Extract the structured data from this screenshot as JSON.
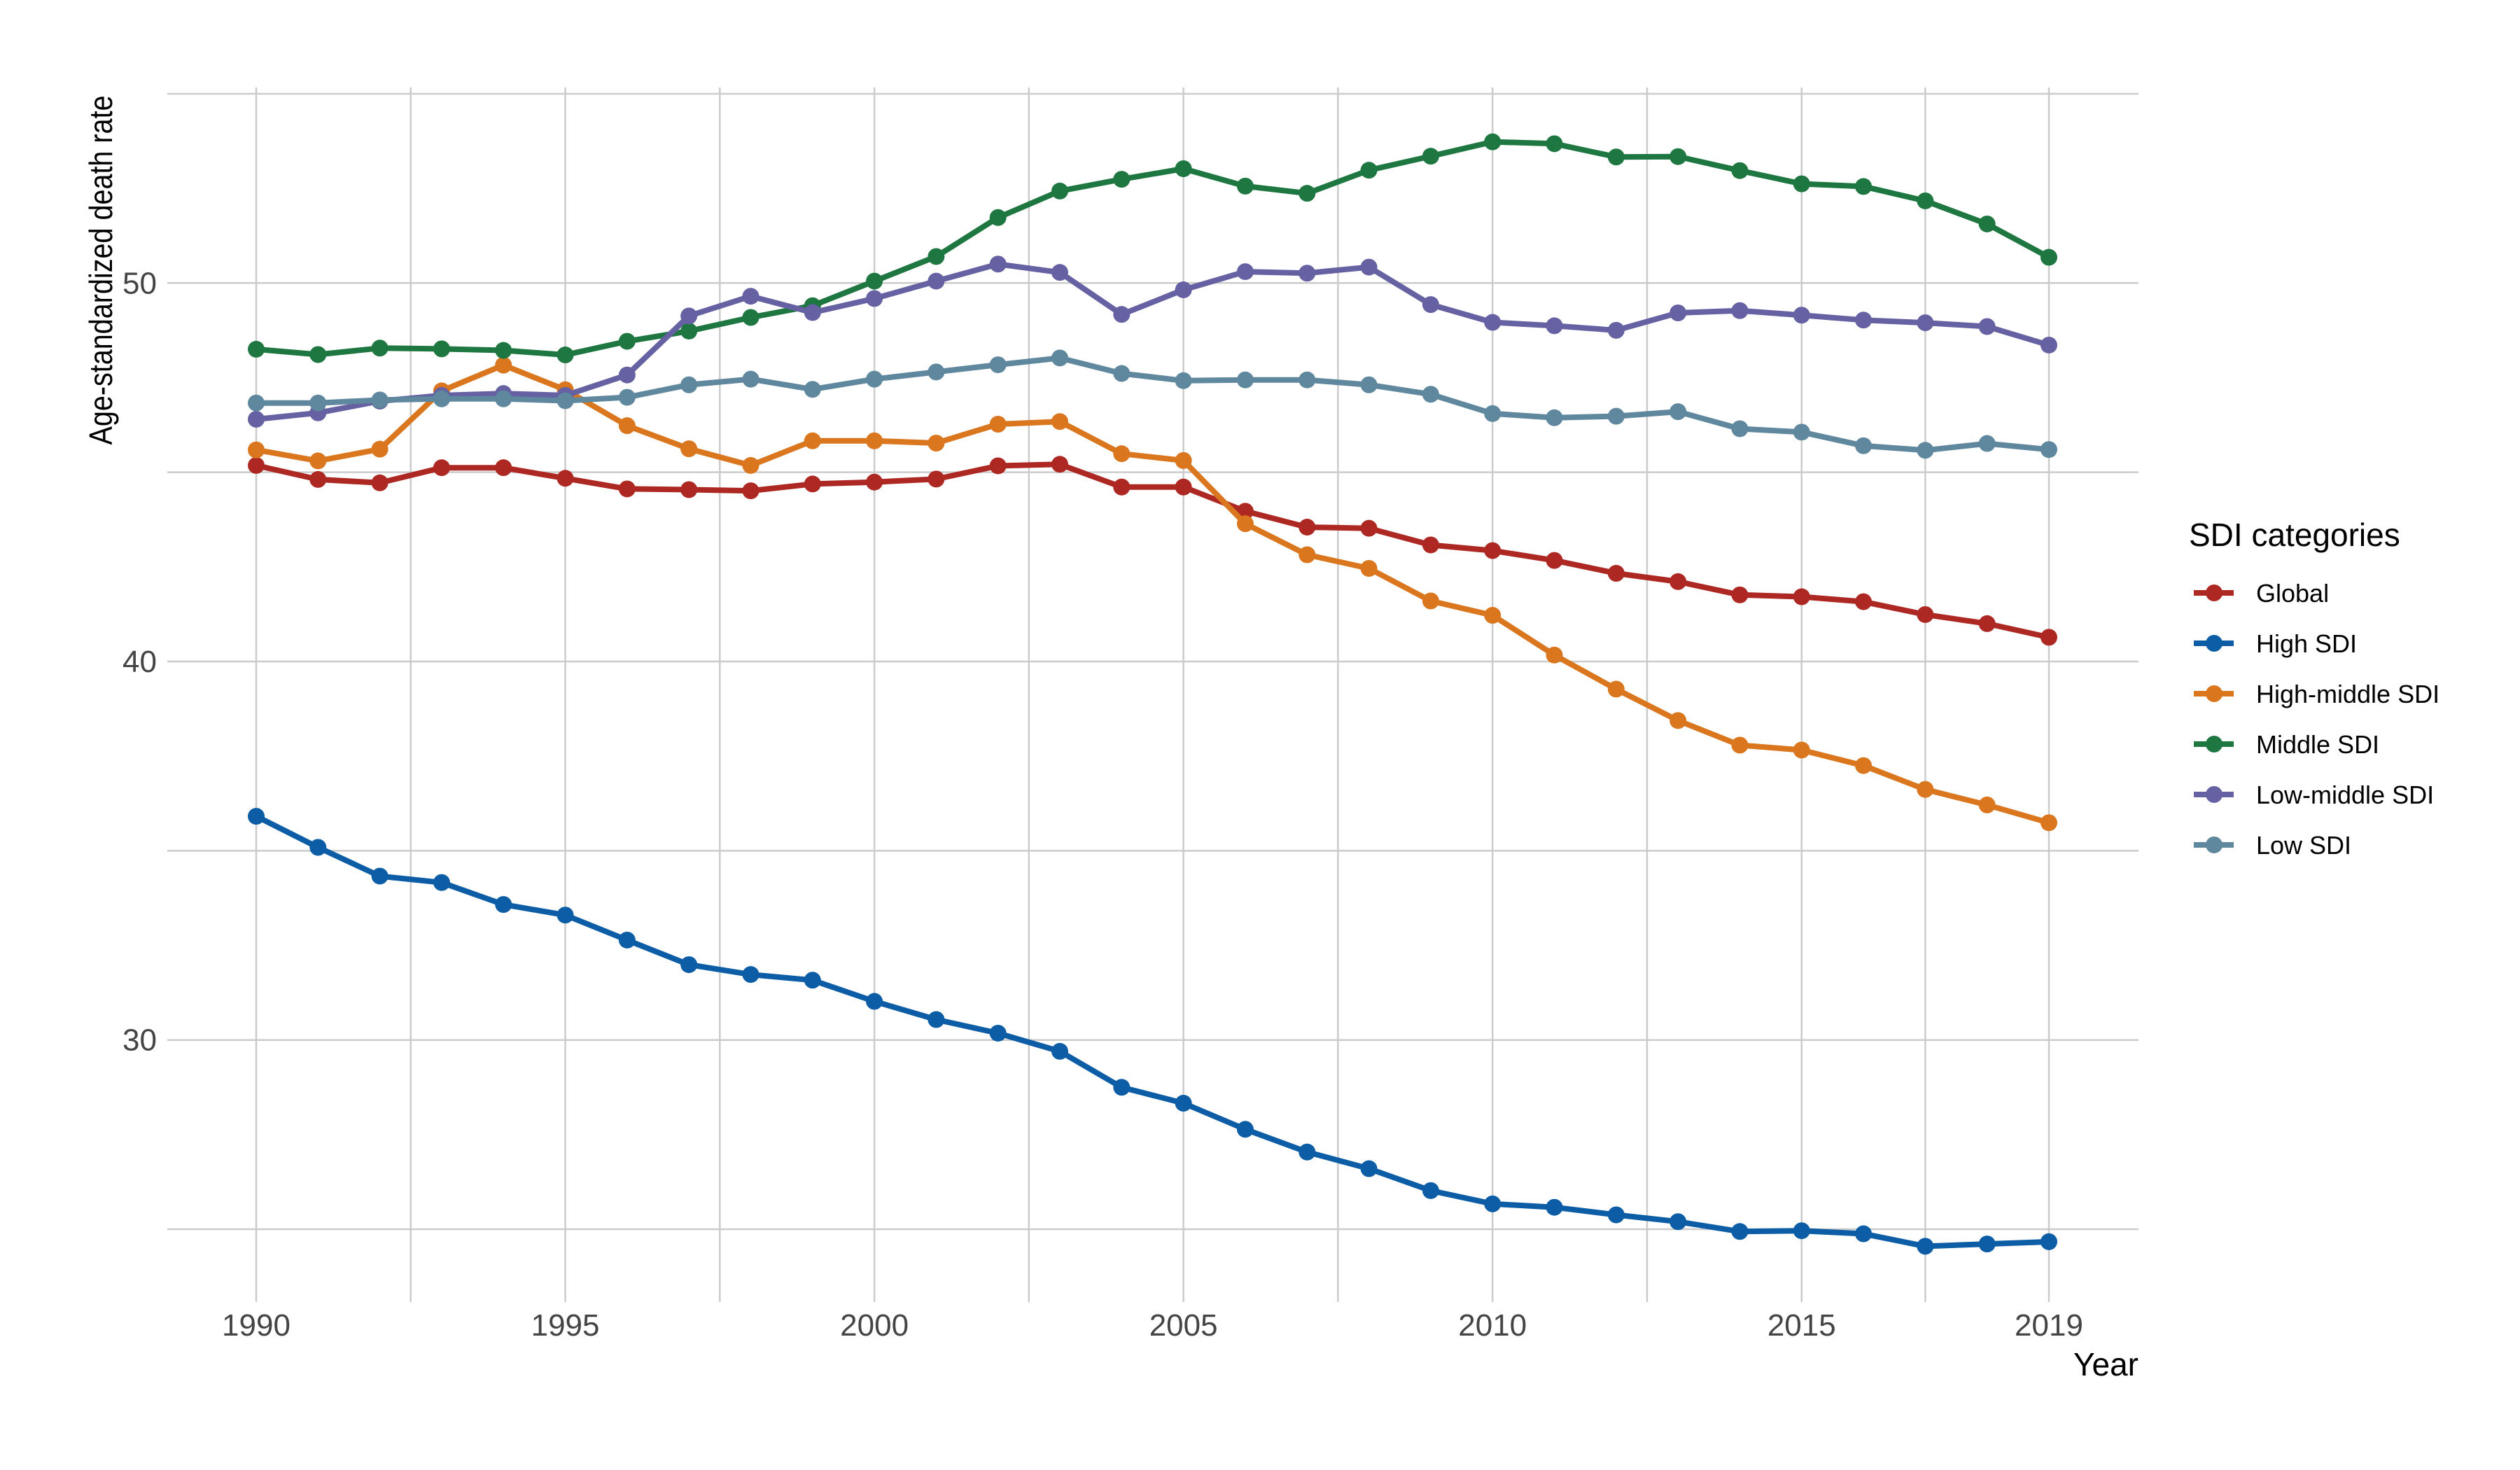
{
  "chart_data": {
    "type": "line",
    "title": "",
    "xlabel": "Year",
    "ylabel": "Age-standardized death rate",
    "x": [
      1990,
      1991,
      1992,
      1993,
      1994,
      1995,
      1996,
      1997,
      1998,
      1999,
      2000,
      2001,
      2002,
      2003,
      2004,
      2005,
      2006,
      2007,
      2008,
      2009,
      2010,
      2011,
      2012,
      2013,
      2014,
      2015,
      2016,
      2017,
      2018,
      2019
    ],
    "x_ticks": [
      1990,
      1995,
      2000,
      2005,
      2010,
      2015,
      2019
    ],
    "x_tick_labels": [
      "1990",
      "1995",
      "2000",
      "2005",
      "2010",
      "2015",
      "2019"
    ],
    "x_minor_ticks": [
      1992.5,
      1997.5,
      2002.5,
      2007.5,
      2012.5,
      2017
    ],
    "y_ticks": [
      30,
      40,
      50
    ],
    "y_tick_labels": [
      "30",
      "40",
      "50"
    ],
    "y_minor_ticks": [
      25,
      35,
      45,
      55
    ],
    "xlim": [
      1988.5,
      2020.5
    ],
    "ylim": [
      23.1,
      56.9
    ],
    "grid": true,
    "legend": {
      "title": "SDI categories",
      "position": "right"
    },
    "series": [
      {
        "name": "Global",
        "color": "#AD2822",
        "values": [
          45.18,
          44.81,
          44.72,
          45.12,
          45.12,
          44.84,
          44.56,
          44.54,
          44.51,
          44.69,
          44.74,
          44.82,
          45.17,
          45.21,
          44.61,
          44.61,
          43.97,
          43.55,
          43.52,
          43.08,
          42.93,
          42.67,
          42.33,
          42.11,
          41.76,
          41.71,
          41.58,
          41.24,
          41.0,
          40.64
        ]
      },
      {
        "name": "High SDI",
        "color": "#0C5DA5",
        "values": [
          35.91,
          35.09,
          34.33,
          34.16,
          33.58,
          33.3,
          32.64,
          31.99,
          31.73,
          31.58,
          31.02,
          30.54,
          30.18,
          29.7,
          28.75,
          28.33,
          27.64,
          27.04,
          26.6,
          26.02,
          25.67,
          25.58,
          25.38,
          25.2,
          24.94,
          24.96,
          24.88,
          24.55,
          24.61,
          24.67
        ]
      },
      {
        "name": "High-middle SDI",
        "color": "#D9761E",
        "values": [
          45.59,
          45.3,
          45.61,
          47.15,
          47.83,
          47.18,
          46.23,
          45.62,
          45.18,
          45.83,
          45.83,
          45.77,
          46.27,
          46.34,
          45.49,
          45.31,
          43.64,
          42.82,
          42.46,
          41.6,
          41.22,
          40.17,
          39.27,
          38.44,
          37.79,
          37.66,
          37.25,
          36.62,
          36.21,
          35.74
        ]
      },
      {
        "name": "Middle SDI",
        "color": "#1E7740",
        "values": [
          48.25,
          48.11,
          48.28,
          48.26,
          48.22,
          48.1,
          48.46,
          48.73,
          49.09,
          49.4,
          50.05,
          50.7,
          51.73,
          52.43,
          52.74,
          53.02,
          52.56,
          52.37,
          52.98,
          53.35,
          53.73,
          53.68,
          53.33,
          53.34,
          52.97,
          52.62,
          52.55,
          52.17,
          51.56,
          50.68
        ]
      },
      {
        "name": "Low-middle SDI",
        "color": "#6561A2",
        "values": [
          46.4,
          46.57,
          46.88,
          47.03,
          47.08,
          47.03,
          47.57,
          49.13,
          49.65,
          49.22,
          49.59,
          50.05,
          50.5,
          50.28,
          49.17,
          49.82,
          50.3,
          50.26,
          50.42,
          49.43,
          48.96,
          48.87,
          48.75,
          49.21,
          49.27,
          49.15,
          49.02,
          48.95,
          48.85,
          48.36
        ]
      },
      {
        "name": "Low SDI",
        "color": "#5F879D",
        "values": [
          46.83,
          46.83,
          46.91,
          46.94,
          46.94,
          46.89,
          46.98,
          47.31,
          47.46,
          47.19,
          47.46,
          47.65,
          47.84,
          48.02,
          47.61,
          47.42,
          47.44,
          47.44,
          47.31,
          47.06,
          46.55,
          46.44,
          46.48,
          46.6,
          46.15,
          46.06,
          45.7,
          45.58,
          45.76,
          45.6
        ]
      }
    ]
  }
}
